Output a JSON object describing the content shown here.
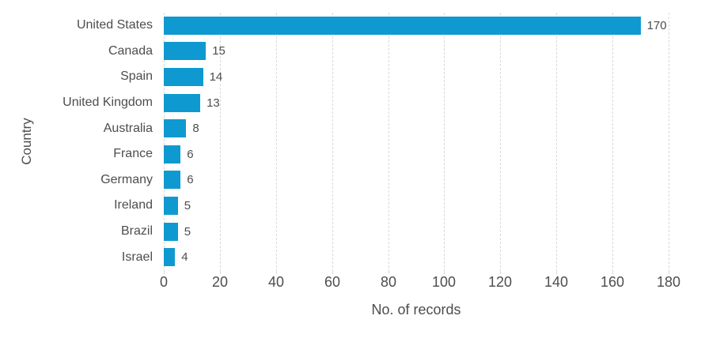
{
  "chart_data": {
    "type": "bar",
    "orientation": "horizontal",
    "categories": [
      "United States",
      "Canada",
      "Spain",
      "United Kingdom",
      "Australia",
      "France",
      "Germany",
      "Ireland",
      "Brazil",
      "Israel"
    ],
    "values": [
      170,
      15,
      14,
      13,
      8,
      6,
      6,
      5,
      5,
      4
    ],
    "data_labels": [
      "170",
      "15",
      "14",
      "13",
      "8",
      "6",
      "6",
      "5",
      "5",
      "4"
    ],
    "title": "",
    "xlabel": "No. of records",
    "ylabel": "Country",
    "xlim": [
      0,
      180
    ],
    "xticks": [
      0,
      20,
      40,
      60,
      80,
      100,
      120,
      140,
      160,
      180
    ],
    "grid": "vertical-dashed",
    "legend": "none",
    "bar_color": "#0e9ad0",
    "gridline_color": "#d9d9d9",
    "text_color": "#4d4d4d",
    "background_color": "#ffffff"
  }
}
